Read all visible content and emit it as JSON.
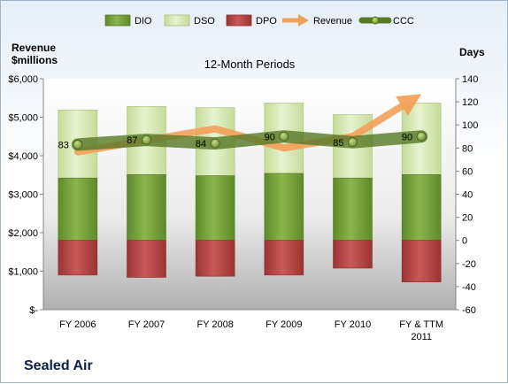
{
  "chart_data": {
    "type": "bar",
    "title": "12-Month Periods",
    "categories": [
      "FY 2006",
      "FY 2007",
      "FY 2008",
      "FY 2009",
      "FY 2010",
      "FY & TTM 2011"
    ],
    "left_axis": {
      "label_line1": "Revenue",
      "label_line2": "$millions",
      "min": 0,
      "max": 6000,
      "step": 1000,
      "tick_labels": [
        "$-",
        "$1,000",
        "$2,000",
        "$3,000",
        "$4,000",
        "$5,000",
        "$6,000"
      ]
    },
    "right_axis": {
      "label": "Days",
      "min": -60,
      "max": 140,
      "step": 20,
      "tick_labels": [
        "-60",
        "-40",
        "-20",
        "0",
        "20",
        "40",
        "60",
        "80",
        "100",
        "120",
        "140"
      ]
    },
    "series": [
      {
        "name": "DIO",
        "kind": "bar",
        "axis": "right",
        "color": "#77a03c",
        "values": [
          54,
          57,
          56,
          58,
          54,
          57
        ]
      },
      {
        "name": "DSO",
        "kind": "bar-stacked-on-DIO",
        "axis": "right",
        "color": "#d6e8b3",
        "values": [
          59,
          59,
          59,
          61,
          55,
          62
        ]
      },
      {
        "name": "DPO",
        "kind": "bar-negative",
        "axis": "right",
        "color": "#b84848",
        "values": [
          -30,
          -32,
          -31,
          -30,
          -24,
          -36
        ]
      },
      {
        "name": "Revenue",
        "kind": "arrow-line",
        "axis": "left",
        "color": "#f2a05a",
        "values": [
          4100,
          4400,
          4700,
          4200,
          4500,
          5600
        ]
      },
      {
        "name": "CCC",
        "kind": "line-markers",
        "axis": "right",
        "color": "#5a7a2a",
        "values": [
          83,
          87,
          84,
          90,
          85,
          90
        ]
      }
    ],
    "data_labels": [
      "83",
      "87",
      "84",
      "90",
      "85",
      "90"
    ],
    "legend_position": "top",
    "grid": false
  },
  "company": "Sealed Air"
}
